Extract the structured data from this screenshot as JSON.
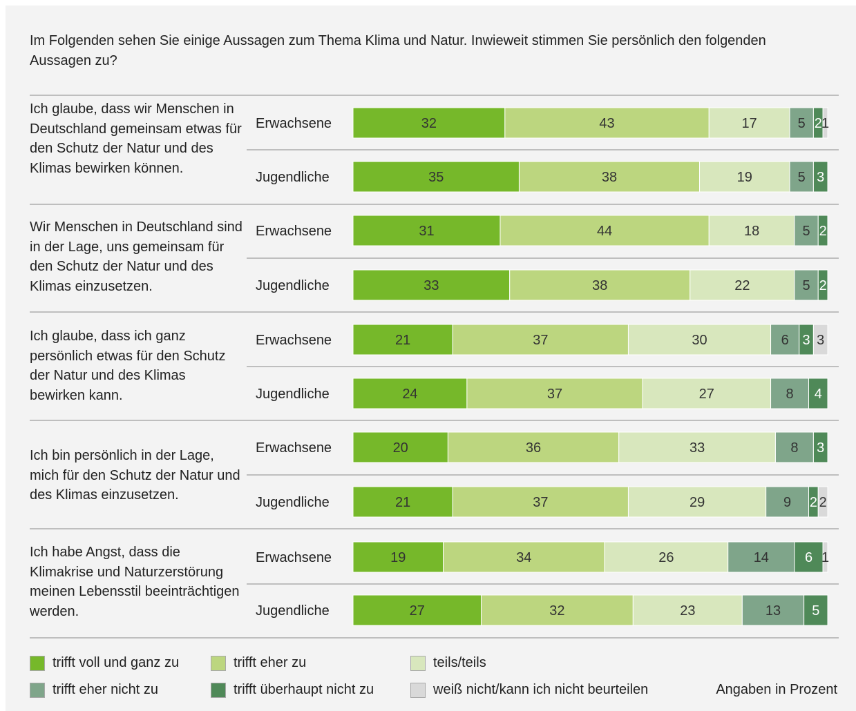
{
  "question": "Im Folgenden sehen Sie einige Aussagen zum Thema Klima und Natur. Inwieweit stimmen Sie persönlich den folgenden Aussagen zu?",
  "unit_note": "Angaben in Prozent",
  "colors": {
    "background": "#f3f3f3",
    "trifft_voll": "#76b82a",
    "trifft_eher": "#bcd67f",
    "teils": "#d8e7bd",
    "eher_nicht": "#7fa58a",
    "ueberhaupt_nicht": "#4f8958",
    "weiss_nicht": "#d9d9d9"
  },
  "legend": [
    {
      "label": "trifft voll und ganz zu",
      "color": "#76b82a"
    },
    {
      "label": "trifft eher zu",
      "color": "#bcd67f"
    },
    {
      "label": "teils/teils",
      "color": "#d8e7bd"
    },
    {
      "label": "trifft eher nicht zu",
      "color": "#7fa58a"
    },
    {
      "label": "trifft überhaupt nicht zu",
      "color": "#4f8958"
    },
    {
      "label": "weiß nicht/kann ich nicht beurteilen",
      "color": "#d9d9d9"
    }
  ],
  "chart_data": {
    "type": "bar",
    "stacked": true,
    "orientation": "horizontal",
    "xlim": [
      0,
      100
    ],
    "series": [
      {
        "name": "trifft voll und ganz zu"
      },
      {
        "name": "trifft eher zu"
      },
      {
        "name": "teils/teils"
      },
      {
        "name": "trifft eher nicht zu"
      },
      {
        "name": "trifft überhaupt nicht zu"
      },
      {
        "name": "weiß nicht/kann ich nicht beurteilen"
      }
    ],
    "groups": [
      {
        "statement": "Ich glaube, dass wir Menschen in Deutschland gemeinsam etwas für den Schutz der Natur und des Klimas bewirken können.",
        "bars": [
          {
            "label": "Erwachsene",
            "values": [
              32,
              43,
              17,
              5,
              2,
              1
            ]
          },
          {
            "label": "Jugendliche",
            "values": [
              35,
              38,
              19,
              5,
              3,
              0
            ]
          }
        ]
      },
      {
        "statement": "Wir Menschen in Deutschland sind in der Lage, uns gemeinsam für den Schutz der Natur und des Klimas einzusetzen.",
        "bars": [
          {
            "label": "Erwachsene",
            "values": [
              31,
              44,
              18,
              5,
              2,
              0
            ]
          },
          {
            "label": "Jugendliche",
            "values": [
              33,
              38,
              22,
              5,
              2,
              0
            ]
          }
        ]
      },
      {
        "statement": "Ich glaube, dass ich ganz persönlich etwas für den Schutz der Natur und des Klimas bewirken kann.",
        "bars": [
          {
            "label": "Erwachsene",
            "values": [
              21,
              37,
              30,
              6,
              3,
              3
            ]
          },
          {
            "label": "Jugendliche",
            "values": [
              24,
              37,
              27,
              8,
              4,
              0
            ]
          }
        ]
      },
      {
        "statement": "Ich bin persönlich in der Lage, mich für den Schutz der Natur und des Klimas einzusetzen.",
        "bars": [
          {
            "label": "Erwachsene",
            "values": [
              20,
              36,
              33,
              8,
              3,
              0
            ]
          },
          {
            "label": "Jugendliche",
            "values": [
              21,
              37,
              29,
              9,
              2,
              2
            ]
          }
        ]
      },
      {
        "statement": "Ich habe Angst, dass die Klimakrise und Naturzerstörung meinen Lebensstil beeinträchtigen werden.",
        "bars": [
          {
            "label": "Erwachsene",
            "values": [
              19,
              34,
              26,
              14,
              6,
              1
            ]
          },
          {
            "label": "Jugendliche",
            "values": [
              27,
              32,
              23,
              13,
              5,
              0
            ]
          }
        ]
      }
    ]
  }
}
